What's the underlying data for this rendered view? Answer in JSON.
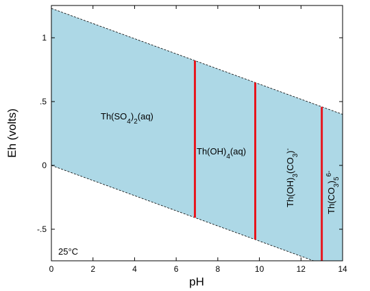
{
  "chart_data": {
    "type": "area",
    "title": "",
    "xlabel": "pH",
    "ylabel": "Eh (volts)",
    "xlim": [
      0,
      14
    ],
    "ylim": [
      -0.75,
      1.25
    ],
    "x_ticks": [
      0,
      2,
      4,
      6,
      8,
      10,
      12,
      14
    ],
    "x_tick_labels": [
      "0",
      "2",
      "4",
      "6",
      "8",
      "10",
      "12",
      "14"
    ],
    "y_ticks": [
      -0.5,
      0,
      0.5,
      1
    ],
    "y_tick_labels": [
      "-.5",
      "0",
      ".5",
      "1"
    ],
    "stability_field": {
      "upper_boundary": [
        [
          0,
          1.23
        ],
        [
          14,
          0.4
        ]
      ],
      "lower_boundary": [
        [
          0,
          0.0
        ],
        [
          14,
          -0.83
        ]
      ],
      "fill_color": "#add8e6",
      "boundary_style": "dashed"
    },
    "phase_boundaries": [
      {
        "x": 6.9,
        "color": "#e8141c"
      },
      {
        "x": 9.8,
        "color": "#e8141c"
      },
      {
        "x": 13.0,
        "color": "#e8141c"
      }
    ],
    "fields": [
      {
        "label": "Th(SO4)2(aq)",
        "x": 3.6,
        "y": 0.37,
        "rotate": false
      },
      {
        "label": "Th(OH)4(aq)",
        "x": 8.3,
        "y": 0.11,
        "rotate": false
      },
      {
        "label": "Th(OH)3(CO3)−",
        "x": 11.3,
        "y": -0.1,
        "rotate": true
      },
      {
        "label": "Th(CO3)5 6−",
        "x": 13.6,
        "y": -0.25,
        "rotate": true
      }
    ],
    "annotation": "25°C"
  }
}
